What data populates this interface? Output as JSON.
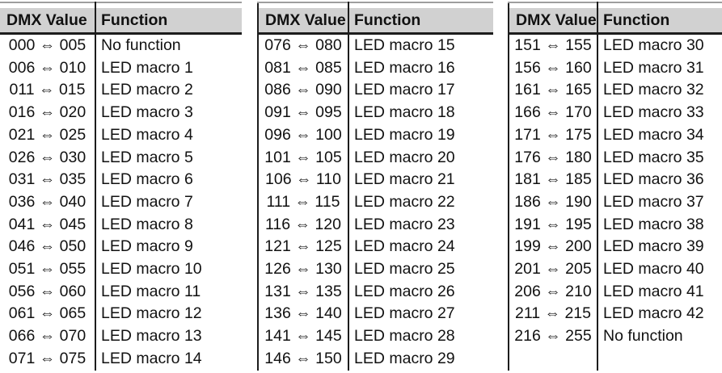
{
  "table": {
    "header": {
      "dmx": "DMX Value",
      "function": "Function"
    },
    "colors": {
      "header_bg": "#d1d1d1",
      "header_rule": "#1c1c1c",
      "top_rule": "#9e9e9e",
      "text": "#111111"
    },
    "groups": [
      {
        "rows": [
          {
            "dmx": "000 ⇔ 005",
            "function": "No function"
          },
          {
            "dmx": "006 ⇔ 010",
            "function": "LED macro 1"
          },
          {
            "dmx": "011 ⇔ 015",
            "function": "LED macro 2"
          },
          {
            "dmx": "016 ⇔ 020",
            "function": "LED macro 3"
          },
          {
            "dmx": "021 ⇔ 025",
            "function": "LED macro 4"
          },
          {
            "dmx": "026 ⇔ 030",
            "function": "LED macro 5"
          },
          {
            "dmx": "031 ⇔ 035",
            "function": "LED macro 6"
          },
          {
            "dmx": "036 ⇔ 040",
            "function": "LED macro 7"
          },
          {
            "dmx": "041 ⇔ 045",
            "function": "LED macro 8"
          },
          {
            "dmx": "046 ⇔ 050",
            "function": "LED macro 9"
          },
          {
            "dmx": "051 ⇔ 055",
            "function": "LED macro 10"
          },
          {
            "dmx": "056 ⇔ 060",
            "function": "LED macro 11"
          },
          {
            "dmx": "061 ⇔ 065",
            "function": "LED macro 12"
          },
          {
            "dmx": "066 ⇔ 070",
            "function": "LED macro 13"
          },
          {
            "dmx": "071 ⇔ 075",
            "function": "LED macro 14"
          }
        ]
      },
      {
        "rows": [
          {
            "dmx": "076 ⇔ 080",
            "function": "LED macro 15"
          },
          {
            "dmx": "081 ⇔ 085",
            "function": "LED macro 16"
          },
          {
            "dmx": "086 ⇔ 090",
            "function": "LED macro 17"
          },
          {
            "dmx": "091 ⇔ 095",
            "function": "LED macro 18"
          },
          {
            "dmx": "096 ⇔ 100",
            "function": "LED macro 19"
          },
          {
            "dmx": "101 ⇔ 105",
            "function": "LED macro 20"
          },
          {
            "dmx": "106 ⇔ 110",
            "function": "LED macro 21"
          },
          {
            "dmx": "111 ⇔ 115",
            "function": "LED macro 22"
          },
          {
            "dmx": "116 ⇔ 120",
            "function": "LED macro 23"
          },
          {
            "dmx": "121 ⇔ 125",
            "function": "LED macro 24"
          },
          {
            "dmx": "126 ⇔ 130",
            "function": "LED macro 25"
          },
          {
            "dmx": "131 ⇔ 135",
            "function": "LED macro 26"
          },
          {
            "dmx": "136 ⇔ 140",
            "function": "LED macro 27"
          },
          {
            "dmx": "141 ⇔ 145",
            "function": "LED macro 28"
          },
          {
            "dmx": "146 ⇔ 150",
            "function": "LED macro 29"
          }
        ]
      },
      {
        "rows": [
          {
            "dmx": "151 ⇔ 155",
            "function": "LED macro 30"
          },
          {
            "dmx": "156 ⇔ 160",
            "function": "LED macro 31"
          },
          {
            "dmx": "161 ⇔ 165",
            "function": "LED macro 32"
          },
          {
            "dmx": "166 ⇔ 170",
            "function": "LED macro 33"
          },
          {
            "dmx": "171 ⇔ 175",
            "function": "LED macro 34"
          },
          {
            "dmx": "176 ⇔ 180",
            "function": "LED macro 35"
          },
          {
            "dmx": "181 ⇔ 185",
            "function": "LED macro 36"
          },
          {
            "dmx": "186 ⇔ 190",
            "function": "LED macro 37"
          },
          {
            "dmx": "191 ⇔ 195",
            "function": "LED macro 38"
          },
          {
            "dmx": "199 ⇔ 200",
            "function": "LED macro 39"
          },
          {
            "dmx": "201 ⇔ 205",
            "function": "LED macro 40"
          },
          {
            "dmx": "206 ⇔ 210",
            "function": "LED macro 41"
          },
          {
            "dmx": "211 ⇔ 215",
            "function": "LED macro 42"
          },
          {
            "dmx": "216 ⇔ 255",
            "function": "No function"
          },
          {
            "dmx": "",
            "function": ""
          }
        ]
      }
    ]
  }
}
